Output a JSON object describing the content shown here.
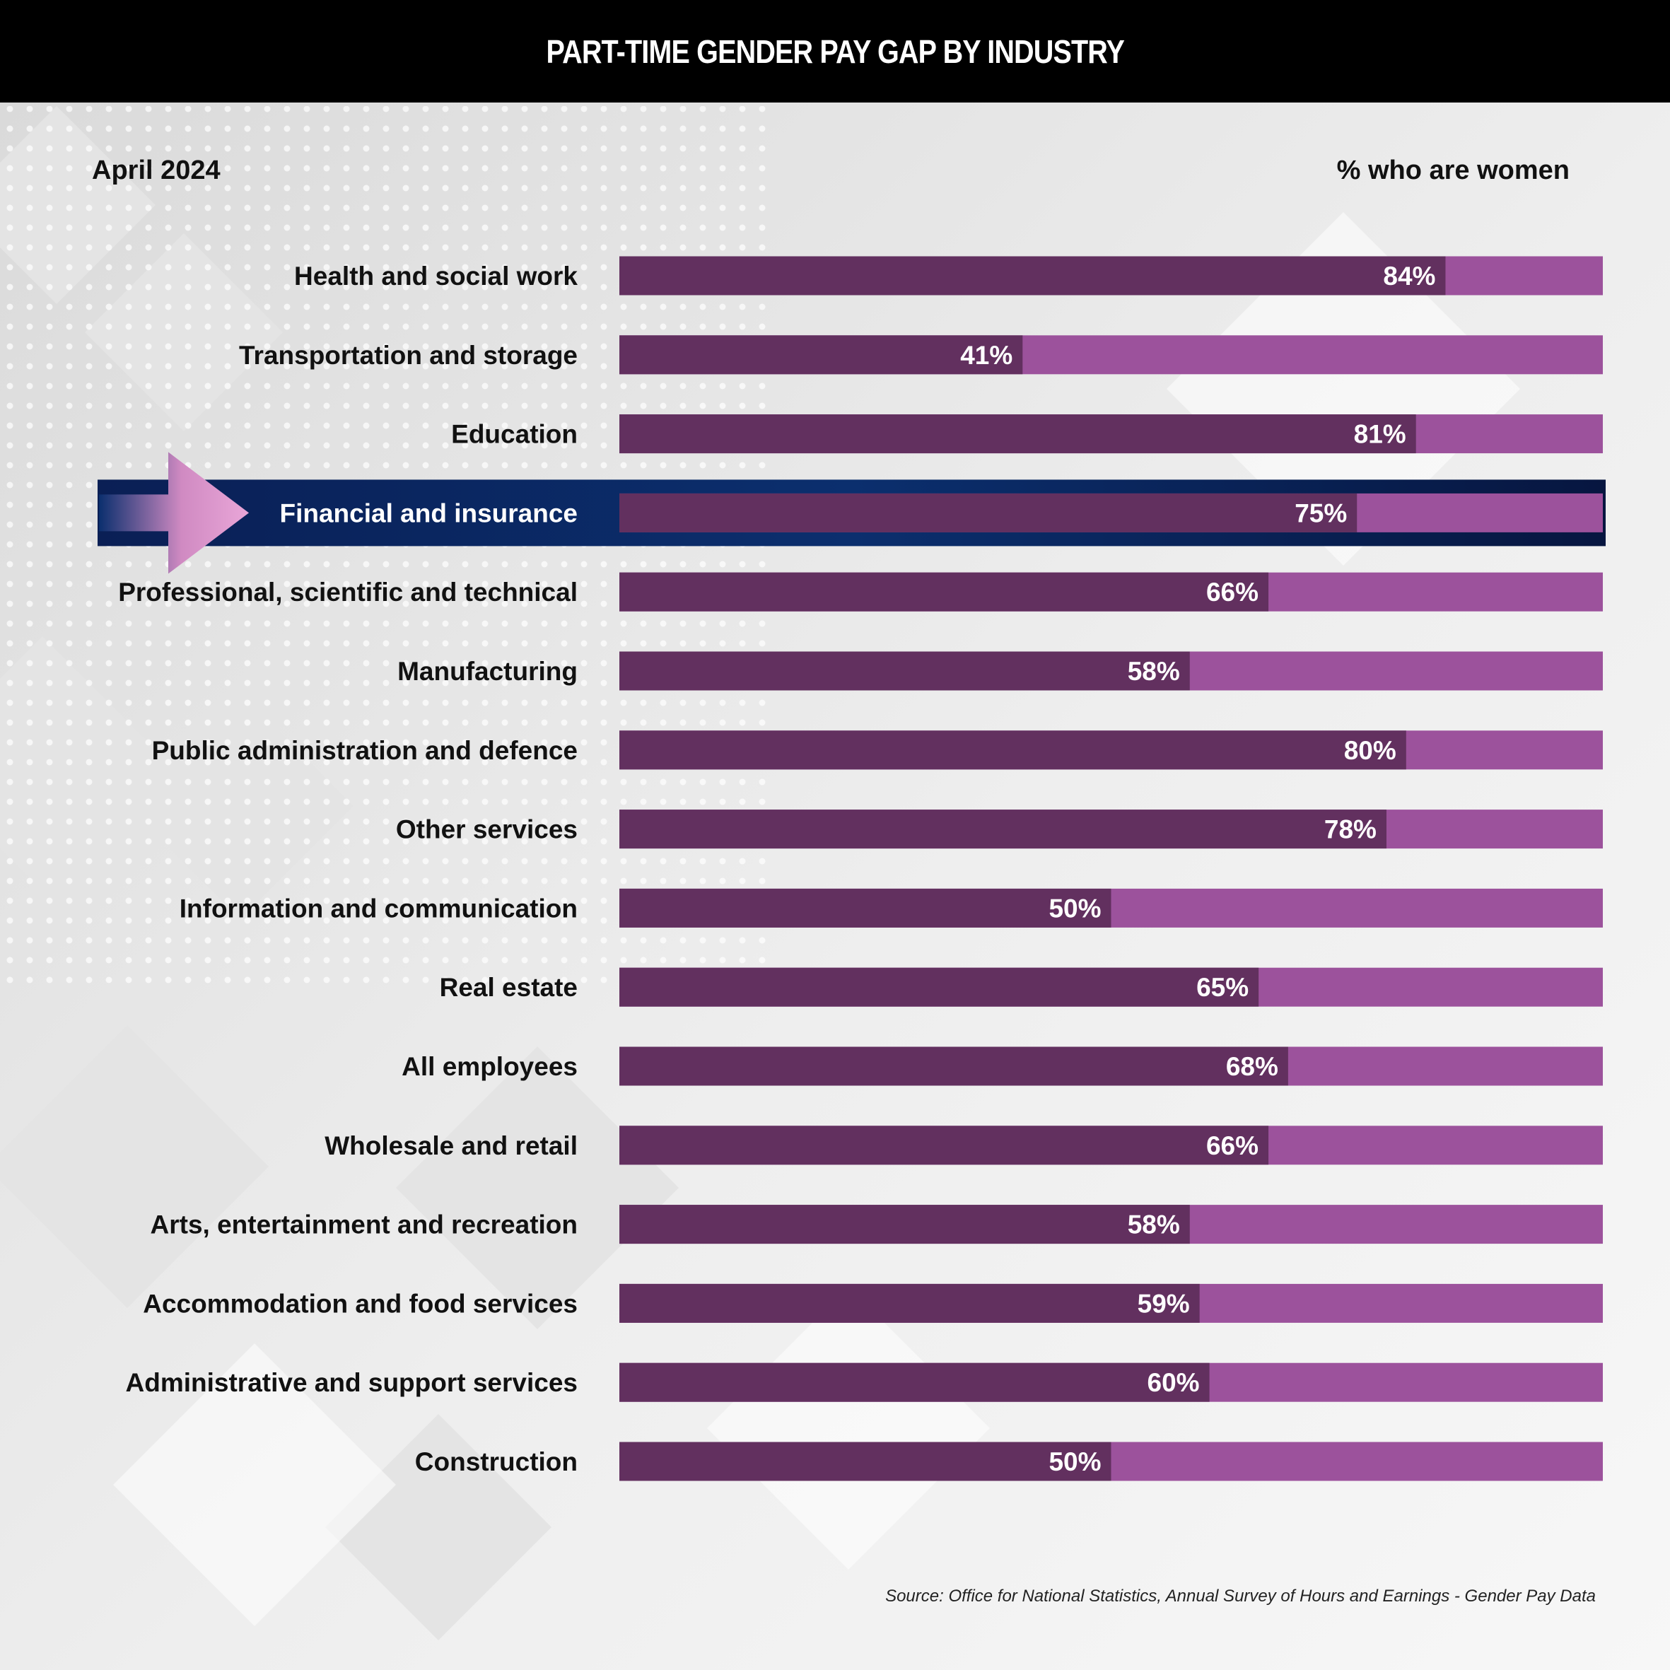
{
  "header": {
    "title": "PART-TIME GENDER PAY GAP BY INDUSTRY"
  },
  "subtitle": "April 2024",
  "legend_label": "% who are women",
  "source": "Source: Office for National Statistics, Annual Survey of Hours and Earnings - Gender Pay Data",
  "colors": {
    "women_bar": "#62305f",
    "remainder_bar": "#9c529c",
    "highlight_band": "#0a2a66",
    "arrow": "#d08ac2"
  },
  "chart_data": {
    "type": "bar",
    "orientation": "horizontal",
    "stacked_to": 100,
    "categories": [
      "Health and social work",
      "Transportation and storage",
      "Education",
      "Financial and insurance",
      "Professional, scientific and technical",
      "Manufacturing",
      "Public administration and defence",
      "Other services",
      "Information and communication",
      "Real estate",
      "All employees",
      "Wholesale and retail",
      "Arts, entertainment and recreation",
      "Accommodation and food services",
      "Administrative and support services",
      "Construction"
    ],
    "values": [
      84,
      41,
      81,
      75,
      66,
      58,
      80,
      78,
      50,
      65,
      68,
      66,
      58,
      59,
      60,
      50
    ],
    "labels": [
      "84%",
      "41%",
      "81%",
      "75%",
      "66%",
      "58%",
      "80%",
      "78%",
      "50%",
      "65%",
      "68%",
      "66%",
      "58%",
      "59%",
      "60%",
      "50%"
    ],
    "highlighted": "Financial and insurance",
    "xlim": [
      0,
      100
    ]
  }
}
